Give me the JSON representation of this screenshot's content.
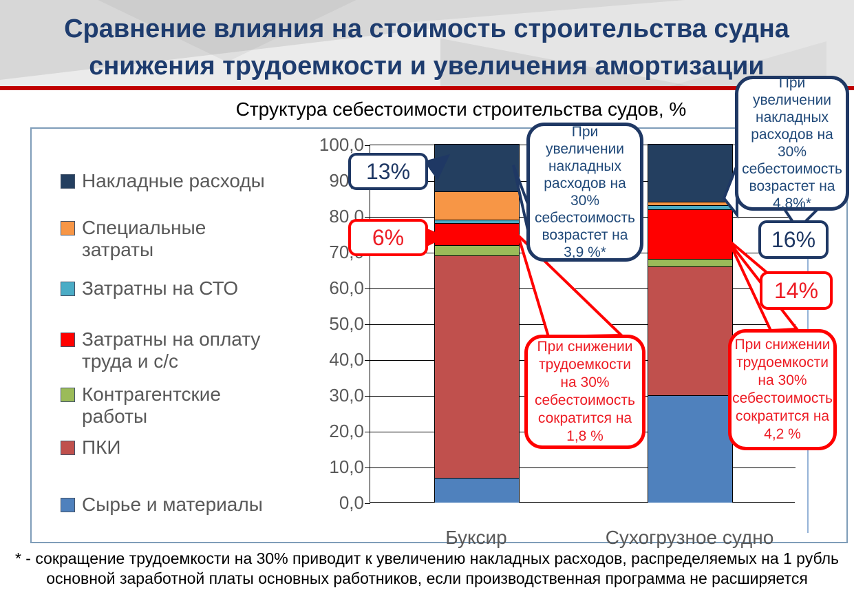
{
  "slide": {
    "title": "Сравнение влияния на стоимость строительства судна снижения трудоемкости и увеличения амортизации",
    "footnote": "* - сокращение трудоемкости на 30% приводит к увеличению накладных расходов, распределяемых на 1 рубль основной заработной платы основных работников, если производственная программа не расширяется"
  },
  "chart_data": {
    "type": "bar",
    "stacked": true,
    "title": "Структура себестоимости строительства судов, %",
    "categories": [
      "Буксир",
      "Сухогрузное судно"
    ],
    "series": [
      {
        "name": "Сырье и материалы",
        "color": "#4f81bd",
        "values": [
          7,
          30
        ]
      },
      {
        "name": "ПКИ",
        "color": "#c0504d",
        "values": [
          62,
          36
        ]
      },
      {
        "name": "Контрагентские работы",
        "color": "#9bbb59",
        "values": [
          3,
          2
        ]
      },
      {
        "name": "Затратны на оплату труда и с/с",
        "color": "#ff0000",
        "values": [
          6,
          14
        ]
      },
      {
        "name": "Затратны на СТО",
        "color": "#4bacc6",
        "values": [
          1,
          1
        ]
      },
      {
        "name": "Специальные затраты",
        "color": "#f79646",
        "values": [
          8,
          1
        ]
      },
      {
        "name": "Накладные расходы",
        "color": "#243f60",
        "values": [
          13,
          16
        ]
      }
    ],
    "legend_order_top_to_bottom": [
      "Накладные расходы",
      "Специальные затраты",
      "Затратны на СТО",
      "Затратны на оплату труда и с/с",
      "Контрагентские работы",
      "ПКИ",
      "Сырье и материалы"
    ],
    "ylim": [
      0,
      100
    ],
    "y_tick_step": 10,
    "y_tick_labels": [
      "100,0",
      "90,0",
      "80,0",
      "70,0",
      "60,0",
      "50,0",
      "40,0",
      "30,0",
      "20,0",
      "10,0",
      "0,0"
    ],
    "grid": true,
    "legend_position": "left"
  },
  "callouts": {
    "pct_overhead_tug": "13%",
    "pct_labor_tug": "6%",
    "pct_overhead_cargo": "16%",
    "pct_labor_cargo": "14%",
    "overhead_tug_note": "При увеличении накладных расходов на 30% себестоимость возрастет на 3,9 %*",
    "overhead_cargo_note": "При увеличении накладных расходов на 30% себестоимость возрастет на 4,8%*",
    "labor_tug_note": "При снижении трудоемкости на 30% себестоимость сократится на 1,8 %",
    "labor_cargo_note": "При снижении трудоемкости на 30% себестоимость сократится на 4,2 %"
  },
  "colors": {
    "divider_red": "#c00000",
    "title_navy": "#1e3c6e",
    "callout_navy": "#1f3864",
    "callout_red": "#ff0000",
    "axis_text_gray": "#595959"
  }
}
